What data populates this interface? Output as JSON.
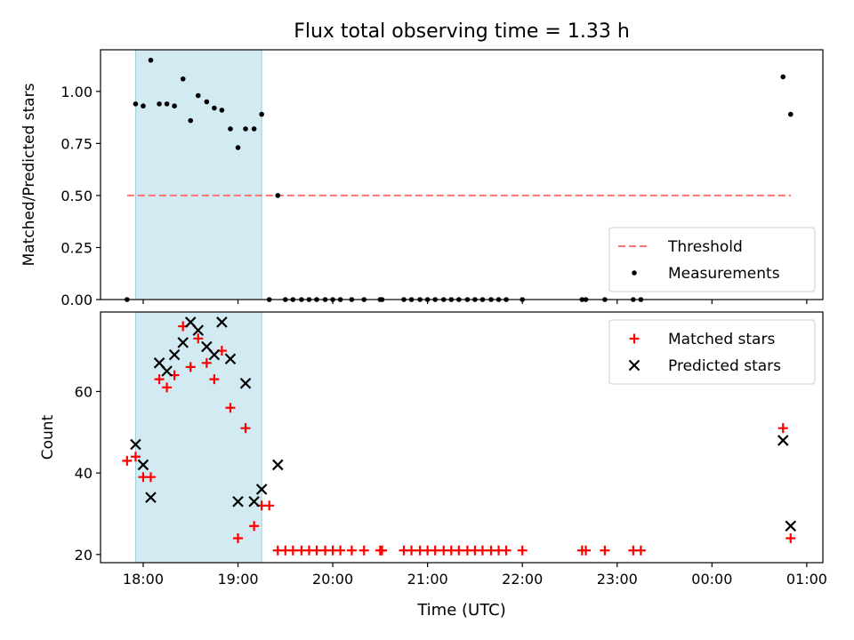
{
  "chart_data": {
    "title": "Flux total observing time = 1.33 h",
    "xlabel": "Time (UTC)",
    "x_unit": "hours (UTC); values ≥ 24 fall after midnight",
    "xlim": [
      17.55,
      25.17
    ],
    "shaded_span": [
      17.92,
      19.25
    ],
    "xtick_values": [
      18,
      19,
      20,
      21,
      22,
      23,
      24,
      25
    ],
    "xtick_labels": [
      "18:00",
      "19:00",
      "20:00",
      "21:00",
      "22:00",
      "23:00",
      "00:00",
      "01:00"
    ],
    "panels": [
      {
        "type": "scatter",
        "ylabel": "Matched/Predicted stars",
        "ylim": [
          0,
          1.2
        ],
        "yticks": [
          0.0,
          0.25,
          0.5,
          0.75,
          1.0
        ],
        "ytick_labels": [
          "0.00",
          "0.25",
          "0.50",
          "0.75",
          "1.00"
        ],
        "legend_position": "lower right",
        "threshold": {
          "name": "Threshold",
          "value": 0.5,
          "x_range": [
            17.83,
            25.17
          ],
          "color": "#ff7070"
        },
        "series": [
          {
            "name": "Measurements",
            "marker": "dot",
            "color": "#000000",
            "points": [
              [
                17.83,
                0.0
              ],
              [
                17.92,
                0.94
              ],
              [
                18.0,
                0.93
              ],
              [
                18.08,
                1.15
              ],
              [
                18.17,
                0.94
              ],
              [
                18.25,
                0.94
              ],
              [
                18.33,
                0.93
              ],
              [
                18.42,
                1.06
              ],
              [
                18.5,
                0.86
              ],
              [
                18.58,
                0.98
              ],
              [
                18.67,
                0.95
              ],
              [
                18.75,
                0.92
              ],
              [
                18.83,
                0.91
              ],
              [
                18.92,
                0.82
              ],
              [
                19.0,
                0.73
              ],
              [
                19.08,
                0.82
              ],
              [
                19.17,
                0.82
              ],
              [
                19.25,
                0.89
              ],
              [
                19.33,
                0.0
              ],
              [
                19.42,
                0.5
              ],
              [
                19.5,
                0.0
              ],
              [
                19.58,
                0.0
              ],
              [
                19.67,
                0.0
              ],
              [
                19.75,
                0.0
              ],
              [
                19.83,
                0.0
              ],
              [
                19.92,
                0.0
              ],
              [
                20.0,
                0.0
              ],
              [
                20.08,
                0.0
              ],
              [
                20.2,
                0.0
              ],
              [
                20.33,
                0.0
              ],
              [
                20.5,
                0.0
              ],
              [
                20.52,
                0.0
              ],
              [
                20.75,
                0.0
              ],
              [
                20.83,
                0.0
              ],
              [
                20.92,
                0.0
              ],
              [
                21.0,
                0.0
              ],
              [
                21.08,
                0.0
              ],
              [
                21.17,
                0.0
              ],
              [
                21.25,
                0.0
              ],
              [
                21.33,
                0.0
              ],
              [
                21.42,
                0.0
              ],
              [
                21.5,
                0.0
              ],
              [
                21.58,
                0.0
              ],
              [
                21.67,
                0.0
              ],
              [
                21.75,
                0.0
              ],
              [
                21.83,
                0.0
              ],
              [
                22.0,
                0.0
              ],
              [
                22.63,
                0.0
              ],
              [
                22.67,
                0.0
              ],
              [
                22.87,
                0.0
              ],
              [
                23.17,
                0.0
              ],
              [
                23.25,
                0.0
              ],
              [
                24.75,
                1.07
              ],
              [
                24.83,
                0.89
              ]
            ]
          }
        ]
      },
      {
        "type": "scatter",
        "ylabel": "Count",
        "ylim": [
          18,
          79.5
        ],
        "yticks": [
          20,
          40,
          60
        ],
        "ytick_labels": [
          "20",
          "40",
          "60"
        ],
        "legend_position": "upper right",
        "series": [
          {
            "name": "Matched stars",
            "marker": "plus",
            "color": "#ff0000",
            "points": [
              [
                17.83,
                43
              ],
              [
                17.92,
                44
              ],
              [
                18.0,
                39
              ],
              [
                18.08,
                39
              ],
              [
                18.17,
                63
              ],
              [
                18.25,
                61
              ],
              [
                18.33,
                64
              ],
              [
                18.42,
                76
              ],
              [
                18.5,
                66
              ],
              [
                18.58,
                73
              ],
              [
                18.67,
                67
              ],
              [
                18.75,
                63
              ],
              [
                18.83,
                70
              ],
              [
                18.92,
                56
              ],
              [
                19.0,
                24
              ],
              [
                19.08,
                51
              ],
              [
                19.17,
                27
              ],
              [
                19.25,
                32
              ],
              [
                19.33,
                32
              ],
              [
                19.42,
                21
              ],
              [
                19.5,
                21
              ],
              [
                19.58,
                21
              ],
              [
                19.67,
                21
              ],
              [
                19.75,
                21
              ],
              [
                19.83,
                21
              ],
              [
                19.92,
                21
              ],
              [
                20.0,
                21
              ],
              [
                20.08,
                21
              ],
              [
                20.2,
                21
              ],
              [
                20.33,
                21
              ],
              [
                20.5,
                21
              ],
              [
                20.52,
                21
              ],
              [
                20.75,
                21
              ],
              [
                20.83,
                21
              ],
              [
                20.92,
                21
              ],
              [
                21.0,
                21
              ],
              [
                21.08,
                21
              ],
              [
                21.17,
                21
              ],
              [
                21.25,
                21
              ],
              [
                21.33,
                21
              ],
              [
                21.42,
                21
              ],
              [
                21.5,
                21
              ],
              [
                21.58,
                21
              ],
              [
                21.67,
                21
              ],
              [
                21.75,
                21
              ],
              [
                21.83,
                21
              ],
              [
                22.0,
                21
              ],
              [
                22.63,
                21
              ],
              [
                22.67,
                21
              ],
              [
                22.87,
                21
              ],
              [
                23.17,
                21
              ],
              [
                23.25,
                21
              ],
              [
                24.75,
                51
              ],
              [
                24.83,
                24
              ]
            ]
          },
          {
            "name": "Predicted stars",
            "marker": "x",
            "color": "#000000",
            "points": [
              [
                17.92,
                47
              ],
              [
                18.0,
                42
              ],
              [
                18.08,
                34
              ],
              [
                18.17,
                67
              ],
              [
                18.25,
                65
              ],
              [
                18.33,
                69
              ],
              [
                18.42,
                72
              ],
              [
                18.5,
                77
              ],
              [
                18.58,
                75
              ],
              [
                18.67,
                71
              ],
              [
                18.75,
                69
              ],
              [
                18.83,
                77
              ],
              [
                18.92,
                68
              ],
              [
                19.0,
                33
              ],
              [
                19.08,
                62
              ],
              [
                19.17,
                33
              ],
              [
                19.25,
                36
              ],
              [
                19.42,
                42
              ],
              [
                24.75,
                48
              ],
              [
                24.83,
                27
              ]
            ]
          }
        ]
      }
    ]
  }
}
